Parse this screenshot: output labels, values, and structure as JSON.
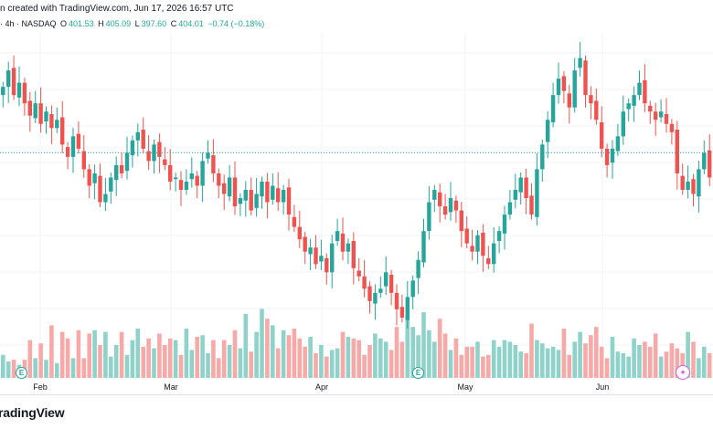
{
  "header": {
    "line1": "n created with TradingView.com, Jun 17, 2026 16:57 UTC",
    "interval": "· 4h · NASDAQ",
    "open_label": "O",
    "open": "401.53",
    "high_label": "H",
    "high": "405.09",
    "low_label": "L",
    "low": "397.60",
    "close_label": "C",
    "close": "404.01",
    "change": "−0.74 (−0.18%)"
  },
  "logo_text": "radingView",
  "earnings_badge": "E",
  "colors": {
    "up": "#26a69a",
    "down": "#ef5350",
    "vol_up": "#8fd2c9",
    "vol_down": "#f7a9a7",
    "last_price_line": "#26a69a"
  },
  "chart_data": {
    "type": "candlestick",
    "interval": "4h",
    "exchange": "NASDAQ",
    "x_tick_labels": [
      "Feb",
      "Mar",
      "Apr",
      "May",
      "Jun"
    ],
    "last": {
      "open": 401.53,
      "high": 405.09,
      "low": 397.6,
      "close": 404.01
    },
    "price_series": [
      420,
      424,
      418,
      421,
      416,
      413,
      416,
      411,
      414,
      410,
      412,
      406,
      403,
      408,
      405,
      400,
      396,
      399,
      392,
      394,
      398,
      401,
      399,
      404,
      407,
      409,
      405,
      402,
      406,
      403,
      401,
      397,
      398,
      395,
      397,
      399,
      396,
      402,
      404,
      399,
      396,
      394,
      398,
      391,
      393,
      395,
      390,
      394,
      397,
      392,
      396,
      392,
      395,
      389,
      386,
      383,
      380,
      381,
      377,
      379,
      375,
      382,
      385,
      380,
      382,
      376,
      374,
      371,
      368,
      370,
      371,
      375,
      370,
      366,
      364,
      369,
      373,
      378,
      385,
      392,
      395,
      391,
      389,
      393,
      390,
      385,
      382,
      380,
      384,
      379,
      377,
      382,
      385,
      389,
      392,
      395,
      398,
      393,
      389,
      400,
      406,
      412,
      418,
      422,
      419,
      415,
      424,
      427,
      418,
      416,
      412,
      405,
      401,
      405,
      408,
      414,
      416,
      418,
      421,
      416,
      414,
      412,
      414,
      411,
      409,
      399,
      395,
      397,
      394,
      400,
      404,
      398
    ],
    "volume_series": [
      28,
      20,
      22,
      16,
      22,
      46,
      24,
      42,
      22,
      64,
      18,
      56,
      48,
      24,
      58,
      24,
      54,
      58,
      40,
      56,
      26,
      40,
      56,
      28,
      46,
      60,
      38,
      48,
      36,
      54,
      40,
      48,
      46,
      28,
      60,
      34,
      50,
      52,
      30,
      46,
      24,
      46,
      40,
      58,
      36,
      78,
      32,
      56,
      84,
      72,
      64,
      36,
      58,
      52,
      60,
      48,
      38,
      50,
      30,
      40,
      26,
      34,
      36,
      56,
      50,
      48,
      46,
      28,
      40,
      54,
      48,
      44,
      34,
      62,
      44,
      76,
      62,
      52,
      80,
      58,
      44,
      72,
      54,
      34,
      48,
      28,
      38,
      38,
      44,
      26,
      28,
      46,
      38,
      46,
      44,
      40,
      32,
      30,
      66,
      46,
      42,
      36,
      38,
      34,
      60,
      28,
      44,
      56,
      42,
      52,
      62,
      38,
      24,
      50,
      32,
      30,
      26,
      48,
      40,
      44,
      38,
      54,
      26,
      32,
      42,
      36,
      30,
      56,
      44,
      24,
      38,
      30
    ]
  }
}
